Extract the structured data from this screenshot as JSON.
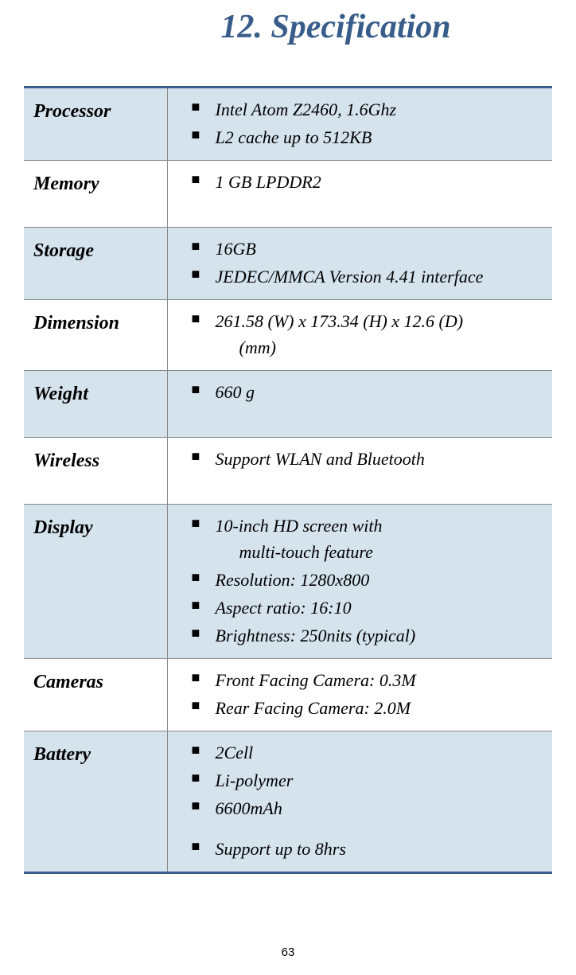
{
  "title": "12. Specification",
  "page_number": "63",
  "colors": {
    "title_color": "#385d8a",
    "border_color": "#385d8a",
    "shaded_bg": "#d5e3ed",
    "row_border": "#888888",
    "background": "#ffffff"
  },
  "rows": [
    {
      "label": "Processor",
      "shaded": true,
      "items": [
        "Intel Atom Z2460, 1.6Ghz",
        "L2 cache up to 512KB"
      ]
    },
    {
      "label": "Memory",
      "shaded": false,
      "tall": true,
      "items": [
        "1 GB LPDDR2"
      ]
    },
    {
      "label": "Storage",
      "shaded": true,
      "items": [
        "16GB",
        "JEDEC/MMCA Version 4.41 interface"
      ]
    },
    {
      "label": "Dimension",
      "shaded": false,
      "items_multiline": [
        {
          "line1": "261.58 (W) x 173.34 (H) x 12.6 (D)",
          "line2": "(mm)"
        }
      ]
    },
    {
      "label": "Weight",
      "shaded": true,
      "tall": true,
      "items": [
        "660 g"
      ]
    },
    {
      "label": "Wireless",
      "shaded": false,
      "tall": true,
      "items": [
        "Support WLAN and Bluetooth"
      ]
    },
    {
      "label": "Display",
      "shaded": true,
      "items_multiline": [
        {
          "line1": "10-inch HD screen with",
          "line2": "multi-touch feature"
        }
      ],
      "items_after": [
        "Resolution: 1280x800",
        "Aspect ratio: 16:10",
        "Brightness: 250nits (typical)"
      ]
    },
    {
      "label": "Cameras",
      "shaded": false,
      "items": [
        "Front Facing Camera: 0.3M",
        "Rear Facing Camera: 2.0M"
      ]
    },
    {
      "label": "Battery",
      "shaded": true,
      "items_group1": [
        "2Cell",
        "Li-polymer",
        "6600mAh"
      ],
      "items_group2": [
        "Support up to 8hrs"
      ]
    }
  ]
}
